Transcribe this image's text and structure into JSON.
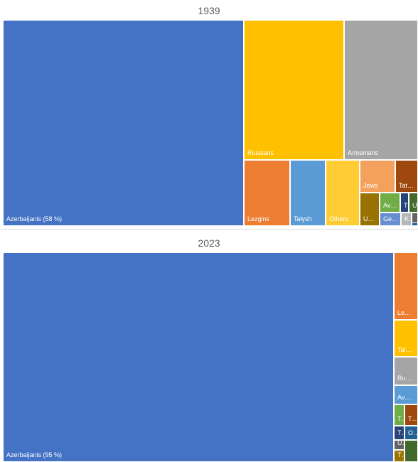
{
  "chart_data": [
    {
      "type": "treemap",
      "title": "1939",
      "items": [
        {
          "label": "Azerbaijanis (58 %)",
          "value": 58,
          "color": "#4472c4"
        },
        {
          "label": "Russians",
          "value": 16,
          "color": "#ffc000"
        },
        {
          "label": "Armenians",
          "value": 12,
          "color": "#a5a5a5"
        },
        {
          "label": "Lezgins",
          "value": 3.5,
          "color": "#ed7d31"
        },
        {
          "label": "Talysh",
          "value": 2.8,
          "color": "#5b9bd5"
        },
        {
          "label": "Others",
          "value": 2.7,
          "color": "#ffcd33"
        },
        {
          "label": "Jews",
          "value": 1.4,
          "color": "#f4a15d"
        },
        {
          "label": "Tat…",
          "value": 1.0,
          "color": "#9e480e"
        },
        {
          "label": "U…",
          "value": 0.6,
          "color": "#997300"
        },
        {
          "label": "Av…",
          "value": 0.5,
          "color": "#70ad47"
        },
        {
          "label": "T…",
          "value": 0.2,
          "color": "#264478"
        },
        {
          "label": "U…",
          "value": 0.3,
          "color": "#43682b"
        },
        {
          "label": "Ge…",
          "value": 0.5,
          "color": "#698ed0"
        },
        {
          "label": "K…",
          "value": 0.2,
          "color": "#b7b7b7"
        },
        {
          "label": "",
          "value": 0.1,
          "color": "#636363"
        },
        {
          "label": "",
          "value": 0.05,
          "color": "#255e91"
        }
      ]
    },
    {
      "type": "treemap",
      "title": "2023",
      "items": [
        {
          "label": "Azerbaijanis (95 %)",
          "value": 95,
          "color": "#4472c4"
        },
        {
          "label": "Le…",
          "value": 1.7,
          "color": "#ed7d31"
        },
        {
          "label": "Tal…",
          "value": 0.9,
          "color": "#ffc000"
        },
        {
          "label": "Ru…",
          "value": 0.7,
          "color": "#a5a5a5"
        },
        {
          "label": "Av…",
          "value": 0.5,
          "color": "#5b9bd5"
        },
        {
          "label": "T…",
          "value": 0.3,
          "color": "#70ad47"
        },
        {
          "label": "T…",
          "value": 0.3,
          "color": "#9e480e"
        },
        {
          "label": "T…",
          "value": 0.15,
          "color": "#264478"
        },
        {
          "label": "O…",
          "value": 0.15,
          "color": "#255e91"
        },
        {
          "label": "U…",
          "value": 0.1,
          "color": "#636363"
        },
        {
          "label": "T…",
          "value": 0.1,
          "color": "#997300"
        },
        {
          "label": "",
          "value": 0.15,
          "color": "#43682b"
        }
      ]
    }
  ]
}
